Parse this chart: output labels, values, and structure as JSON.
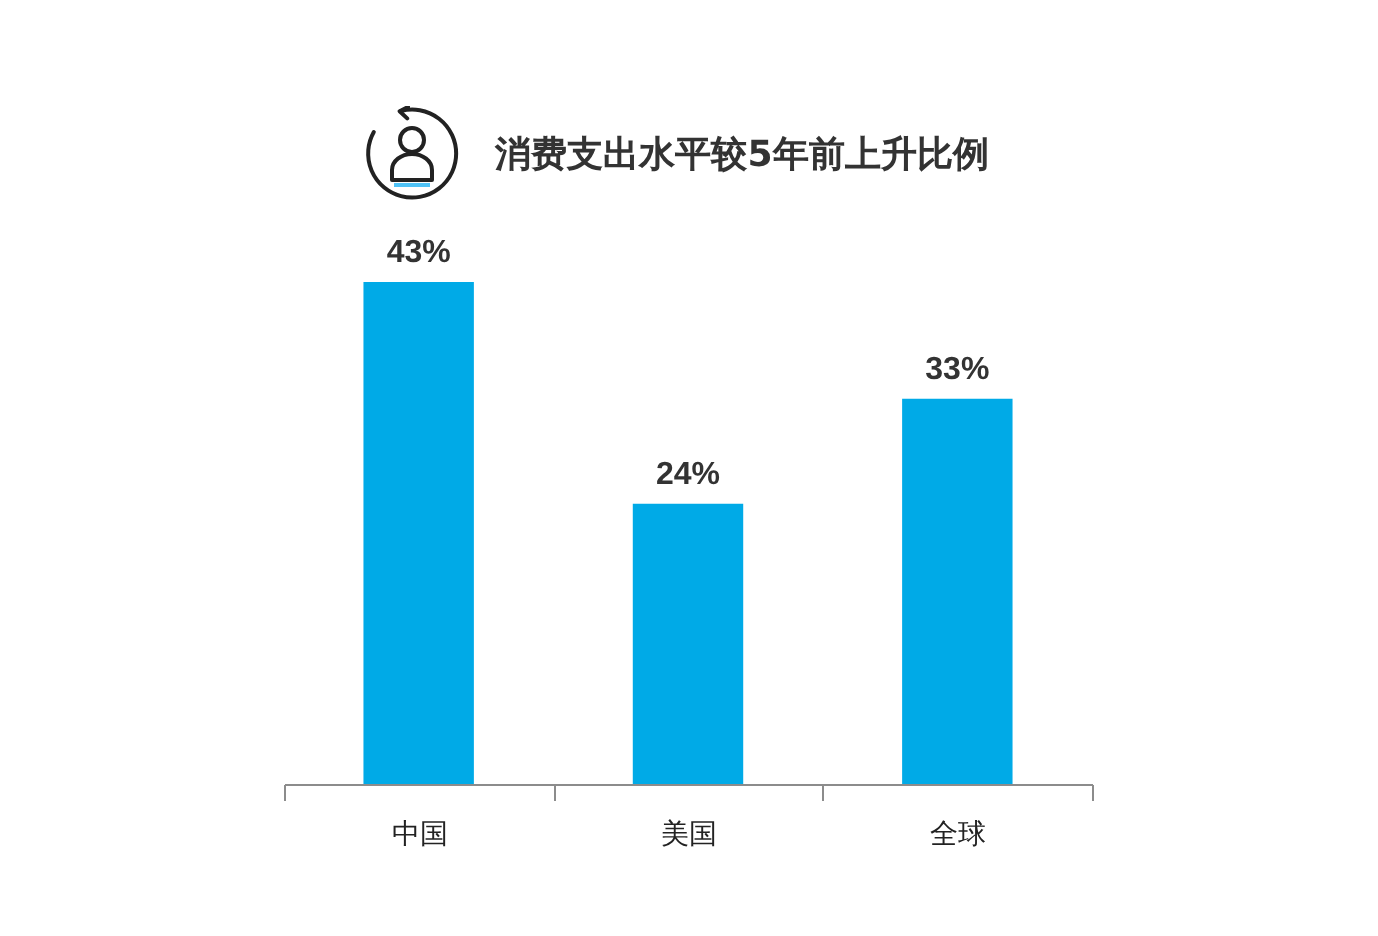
{
  "chart_data": {
    "type": "bar",
    "title": "消费支出水平较5年前上升比例",
    "categories": [
      "中国",
      "美国",
      "全球"
    ],
    "values": [
      43,
      24,
      33
    ],
    "color": "#00aae7",
    "value_labels": [
      "43%",
      "24%",
      "33%"
    ]
  }
}
